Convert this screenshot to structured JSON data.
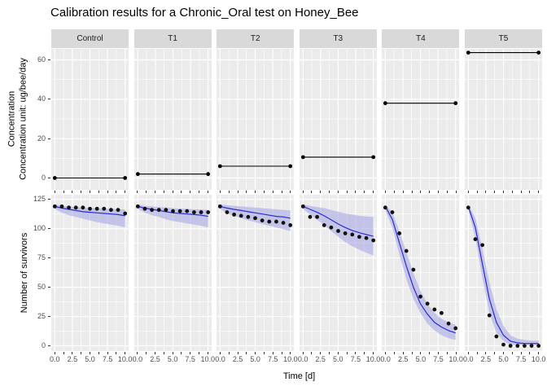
{
  "title": "Calibration results for a Chronic_Oral test on Honey_Bee",
  "chart_data": {
    "type": "line",
    "facets": [
      "Control",
      "T1",
      "T2",
      "T3",
      "T4",
      "T5"
    ],
    "x": [
      0,
      1,
      2,
      3,
      4,
      5,
      6,
      7,
      8,
      9,
      10
    ],
    "xlabel": "Time [d]",
    "xtick_labels": [
      "0.0",
      "2.5",
      "5.0",
      "7.5",
      "10.0"
    ],
    "xtick_values": [
      0,
      2.5,
      5,
      7.5,
      10
    ],
    "xtick_minor": [
      1.25,
      3.75,
      6.25,
      8.75
    ],
    "top_row": {
      "ylabel_line1": "Concentration",
      "ylabel_line2": "Concentration unit: ug/bee/day",
      "yticks": [
        0,
        20,
        40,
        60
      ],
      "yticks_minor": [
        10,
        30,
        50
      ],
      "ylim": [
        -6,
        65.6
      ],
      "doses": [
        0,
        2,
        6,
        10.6,
        38,
        63.7
      ]
    },
    "bottom_row": {
      "ylabel": "Number of survivors",
      "yticks": [
        0,
        25,
        50,
        75,
        100,
        125
      ],
      "yticks_minor": [
        12.5,
        37.5,
        62.5,
        87.5,
        112.5
      ],
      "ylim": [
        -4.5,
        129
      ],
      "series": [
        {
          "facet": "Control",
          "observed": [
            119,
            119,
            118,
            118,
            118,
            117,
            117,
            117,
            116,
            116,
            113
          ],
          "fit": [
            119,
            117.5,
            116.5,
            115.5,
            114.5,
            114,
            113.5,
            113,
            112.5,
            112,
            111
          ],
          "lower": [
            117,
            113.5,
            111.5,
            110,
            108.5,
            107,
            105.5,
            104.5,
            103.5,
            102.5,
            101
          ],
          "upper": [
            120.5,
            119.5,
            119,
            118.5,
            118,
            117.5,
            117.5,
            117,
            117,
            116.5,
            116.5
          ]
        },
        {
          "facet": "T1",
          "observed": [
            119,
            117,
            116,
            116,
            116,
            115,
            115,
            115,
            114,
            114,
            114
          ],
          "fit": [
            119,
            117.5,
            116.5,
            115.5,
            114.5,
            113.5,
            113,
            112.5,
            112,
            111.5,
            110.5
          ],
          "lower": [
            117,
            113.5,
            111.5,
            110,
            108,
            106.5,
            105.5,
            104.5,
            103.5,
            102.5,
            101
          ],
          "upper": [
            120.5,
            119.5,
            119,
            118.5,
            118,
            117.5,
            117,
            117,
            116.5,
            116.5,
            116
          ]
        },
        {
          "facet": "T2",
          "observed": [
            119,
            114,
            112,
            111,
            110,
            109,
            107,
            106,
            106,
            105,
            103
          ],
          "fit": [
            119,
            117.5,
            116.5,
            115.5,
            114.5,
            113.5,
            112.5,
            111.5,
            110.5,
            110,
            109
          ],
          "lower": [
            117,
            113,
            111,
            109,
            107,
            105.5,
            104,
            102.5,
            101,
            99.5,
            98
          ],
          "upper": [
            120.5,
            120,
            119.5,
            119,
            118.5,
            118,
            117.5,
            117,
            116.5,
            116,
            115.5
          ]
        },
        {
          "facet": "T3",
          "observed": [
            119,
            110,
            110,
            103,
            101,
            98,
            96,
            95,
            93,
            92,
            90
          ],
          "fit": [
            119,
            116.5,
            114,
            111,
            107.5,
            104,
            101,
            98.5,
            96.5,
            95,
            93.5
          ],
          "lower": [
            117,
            112,
            107.5,
            103,
            98,
            93,
            88.5,
            85,
            82,
            79.5,
            77
          ],
          "upper": [
            120.5,
            119.5,
            118.5,
            117.5,
            116,
            114.5,
            113,
            112,
            111,
            110.5,
            110
          ]
        },
        {
          "facet": "T4",
          "observed": [
            118,
            114,
            96,
            81,
            65,
            42,
            36,
            31,
            28,
            19,
            15
          ],
          "fit": [
            119,
            108,
            88,
            68,
            50,
            36,
            27,
            20,
            16,
            13,
            11
          ],
          "lower": [
            116,
            101,
            78,
            57,
            40,
            28,
            19,
            13,
            9,
            6.5,
            5
          ],
          "upper": [
            120.5,
            114,
            98,
            80,
            62,
            47,
            36,
            28,
            23,
            20,
            18
          ]
        },
        {
          "facet": "T5",
          "observed": [
            118,
            91,
            86,
            26,
            8,
            1,
            0,
            0,
            0,
            0,
            0
          ],
          "fit": [
            119,
            101,
            70,
            40,
            20,
            9,
            4,
            2.5,
            2,
            2,
            2
          ],
          "lower": [
            116,
            92,
            58,
            28,
            11,
            4,
            1,
            0.5,
            0.5,
            0.5,
            0.5
          ],
          "upper": [
            120.5,
            109,
            83,
            54,
            31,
            17,
            9,
            6,
            5,
            4.5,
            4.5
          ]
        }
      ]
    },
    "colors": {
      "fit_line": "#2a2ad2",
      "ribbon": "#a9a9e6",
      "point": "#111111",
      "dose_line": "#000000",
      "panel_bg": "#ebebeb",
      "strip_bg": "#d9d9d9",
      "grid": "#ffffff",
      "tick_text": "#4d4d4d"
    }
  }
}
